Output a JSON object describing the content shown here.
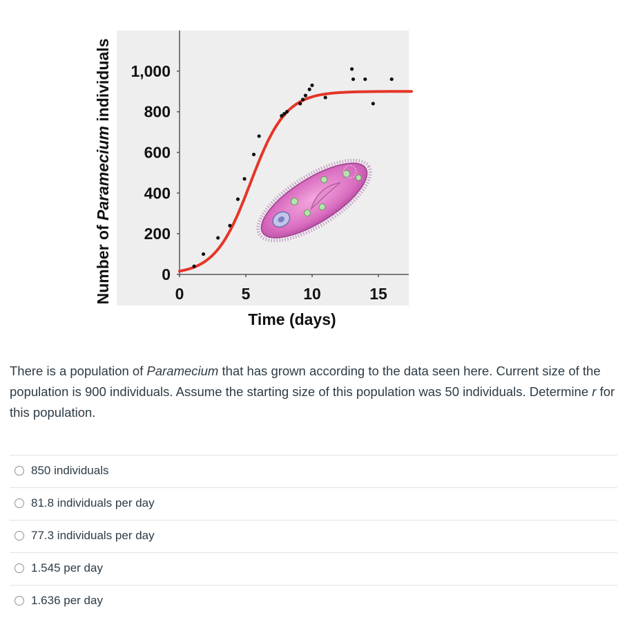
{
  "chart_data": {
    "type": "scatter",
    "title": "",
    "xlabel": "Time (days)",
    "ylabel": "Number of Paramecium individuals",
    "xlim": [
      0,
      17.5
    ],
    "ylim": [
      0,
      1080
    ],
    "xticks": [
      "0",
      "5",
      "10",
      "15"
    ],
    "yticks": [
      "0",
      "200",
      "400",
      "600",
      "800",
      "1,000"
    ],
    "grid": false,
    "series": [
      {
        "kind": "points",
        "color": "#111111",
        "x": [
          1.1,
          1.8,
          2.9,
          3.8,
          4.4,
          4.9,
          5.6,
          6.0,
          7.7,
          7.9,
          8.1,
          9.1,
          9.3,
          9.5,
          9.8,
          10.0,
          11.0,
          13.0,
          13.1,
          14.0,
          14.6,
          16.0
        ],
        "y": [
          40,
          100,
          180,
          240,
          370,
          470,
          590,
          680,
          780,
          790,
          800,
          840,
          860,
          880,
          910,
          930,
          870,
          1010,
          960,
          960,
          840,
          960
        ]
      },
      {
        "kind": "curve",
        "color": "#e53528",
        "logistic": {
          "K": 900,
          "N0": 16,
          "r": 0.75
        }
      }
    ],
    "illustration": "paramecium"
  },
  "question": {
    "before": "There is a population of ",
    "species": "Paramecium",
    "middle": " that has grown according to the data seen here. Current size of the population is 900 individuals. Assume the starting size of this population was 50 individuals. Determine ",
    "variable": "r",
    "after": " for this population."
  },
  "answers": [
    {
      "label": "850 individuals"
    },
    {
      "label": "81.8 individuals per day"
    },
    {
      "label": "77.3 individuals per day"
    },
    {
      "label": "1.545 per day"
    },
    {
      "label": "1.636 per day"
    }
  ]
}
